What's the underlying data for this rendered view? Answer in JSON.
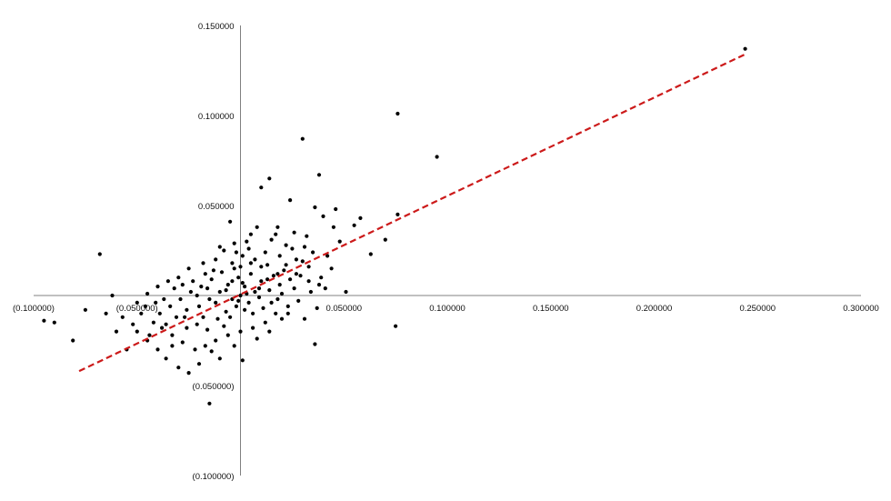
{
  "chart_data": {
    "type": "scatter",
    "title": "",
    "xlabel": "",
    "ylabel": "",
    "xlim": [
      -0.1,
      0.3
    ],
    "ylim": [
      -0.1,
      0.15
    ],
    "x_ticks": [
      {
        "value": -0.1,
        "label": "(0.100000)"
      },
      {
        "value": -0.05,
        "label": "(0.050000)"
      },
      {
        "value": 0.05,
        "label": "0.050000"
      },
      {
        "value": 0.1,
        "label": "0.100000"
      },
      {
        "value": 0.15,
        "label": "0.150000"
      },
      {
        "value": 0.2,
        "label": "0.200000"
      },
      {
        "value": 0.25,
        "label": "0.250000"
      },
      {
        "value": 0.3,
        "label": "0.300000"
      }
    ],
    "y_ticks": [
      {
        "value": 0.15,
        "label": "0.150000"
      },
      {
        "value": 0.1,
        "label": "0.100000"
      },
      {
        "value": 0.05,
        "label": "0.050000"
      },
      {
        "value": -0.05,
        "label": "(0.050000)"
      },
      {
        "value": -0.1,
        "label": "(0.100000)"
      }
    ],
    "grid": false,
    "series": [
      {
        "name": "observations",
        "color": "#000000",
        "points": [
          [
            0.244,
            0.137
          ],
          [
            0.076,
            0.101
          ],
          [
            0.095,
            0.077
          ],
          [
            0.03,
            0.087
          ],
          [
            0.014,
            0.065
          ],
          [
            0.038,
            0.067
          ],
          [
            0.01,
            0.06
          ],
          [
            0.024,
            0.053
          ],
          [
            0.036,
            0.049
          ],
          [
            0.046,
            0.048
          ],
          [
            0.04,
            0.044
          ],
          [
            0.058,
            0.043
          ],
          [
            0.076,
            0.045
          ],
          [
            0.07,
            0.031
          ],
          [
            0.063,
            0.023
          ],
          [
            0.051,
            0.002
          ],
          [
            0.075,
            -0.017
          ],
          [
            0.036,
            -0.027
          ],
          [
            -0.09,
            -0.015
          ],
          [
            -0.081,
            -0.025
          ],
          [
            -0.075,
            -0.008
          ],
          [
            -0.068,
            0.023
          ],
          [
            -0.062,
            0.0
          ],
          [
            -0.057,
            -0.012
          ],
          [
            -0.05,
            -0.02
          ],
          [
            -0.045,
            -0.025
          ],
          [
            -0.04,
            -0.03
          ],
          [
            -0.036,
            -0.035
          ],
          [
            -0.03,
            -0.04
          ],
          [
            -0.025,
            -0.043
          ],
          [
            -0.02,
            -0.038
          ],
          [
            -0.015,
            -0.06
          ],
          [
            -0.01,
            -0.035
          ],
          [
            0.001,
            -0.036
          ],
          [
            0.02,
            -0.013
          ],
          [
            0.031,
            -0.013
          ],
          [
            -0.095,
            -0.014
          ],
          [
            -0.055,
            -0.03
          ],
          [
            -0.038,
            -0.018
          ],
          [
            0.008,
            0.038
          ],
          [
            -0.005,
            0.041
          ],
          [
            0.018,
            0.038
          ],
          [
            0.026,
            0.035
          ],
          [
            0.032,
            0.033
          ],
          [
            0.045,
            0.038
          ],
          [
            0.055,
            0.039
          ],
          [
            0.048,
            0.03
          ],
          [
            0.042,
            0.022
          ],
          [
            0.033,
            0.016
          ],
          [
            0.039,
            0.01
          ],
          [
            0.044,
            0.015
          ],
          [
            0.025,
            0.026
          ],
          [
            0.019,
            0.022
          ],
          [
            0.022,
            0.028
          ],
          [
            0.015,
            0.031
          ],
          [
            0.003,
            0.03
          ],
          [
            -0.003,
            0.029
          ],
          [
            -0.008,
            0.025
          ],
          [
            -0.012,
            0.02
          ],
          [
            -0.018,
            0.018
          ],
          [
            -0.025,
            0.015
          ],
          [
            -0.03,
            0.01
          ],
          [
            -0.035,
            0.008
          ],
          [
            -0.04,
            0.005
          ],
          [
            -0.045,
            0.001
          ],
          [
            -0.05,
            -0.004
          ],
          [
            -0.048,
            -0.01
          ],
          [
            -0.052,
            -0.016
          ],
          [
            -0.042,
            -0.015
          ],
          [
            -0.033,
            -0.022
          ],
          [
            -0.028,
            -0.026
          ],
          [
            -0.022,
            -0.03
          ],
          [
            -0.017,
            -0.028
          ],
          [
            -0.012,
            -0.025
          ],
          [
            -0.006,
            -0.022
          ],
          [
            0.0,
            -0.02
          ],
          [
            0.006,
            -0.018
          ],
          [
            0.012,
            -0.015
          ],
          [
            0.017,
            -0.01
          ],
          [
            0.023,
            -0.006
          ],
          [
            0.028,
            -0.003
          ],
          [
            0.034,
            0.002
          ],
          [
            0.038,
            0.006
          ],
          [
            0.029,
            0.011
          ],
          [
            0.021,
            0.014
          ],
          [
            0.013,
            0.017
          ],
          [
            0.007,
            0.02
          ],
          [
            0.001,
            0.022
          ],
          [
            -0.004,
            0.018
          ],
          [
            -0.009,
            0.013
          ],
          [
            -0.014,
            0.009
          ],
          [
            -0.019,
            0.005
          ],
          [
            -0.024,
            0.002
          ],
          [
            -0.029,
            -0.002
          ],
          [
            -0.034,
            -0.006
          ],
          [
            -0.039,
            -0.01
          ],
          [
            -0.027,
            -0.012
          ],
          [
            -0.021,
            -0.016
          ],
          [
            -0.016,
            -0.019
          ],
          [
            -0.011,
            -0.013
          ],
          [
            -0.007,
            -0.009
          ],
          [
            -0.002,
            -0.006
          ],
          [
            0.004,
            -0.004
          ],
          [
            0.009,
            -0.001
          ],
          [
            0.014,
            0.003
          ],
          [
            0.019,
            0.006
          ],
          [
            0.024,
            0.009
          ],
          [
            0.016,
            0.011
          ],
          [
            0.01,
            0.008
          ],
          [
            0.005,
            0.012
          ],
          [
            -0.001,
            0.01
          ],
          [
            -0.006,
            0.006
          ],
          [
            -0.01,
            0.002
          ],
          [
            -0.015,
            -0.002
          ],
          [
            -0.02,
            -0.006
          ],
          [
            -0.026,
            -0.008
          ],
          [
            -0.031,
            -0.012
          ],
          [
            -0.036,
            -0.016
          ],
          [
            -0.032,
            0.004
          ],
          [
            -0.023,
            0.008
          ],
          [
            -0.013,
            0.014
          ],
          [
            -0.003,
            0.015
          ],
          [
            0.002,
            0.005
          ],
          [
            0.007,
            0.002
          ],
          [
            0.011,
            -0.007
          ],
          [
            0.015,
            -0.004
          ],
          [
            0.02,
            0.001
          ],
          [
            0.026,
            0.004
          ],
          [
            0.03,
            0.019
          ],
          [
            0.035,
            0.024
          ],
          [
            0.027,
            0.02
          ],
          [
            0.012,
            0.024
          ],
          [
            0.004,
            0.026
          ],
          [
            -0.002,
            0.024
          ],
          [
            -0.007,
            0.003
          ],
          [
            -0.004,
            -0.002
          ],
          [
            0.0,
            0.0
          ],
          [
            0.003,
            0.001
          ],
          [
            -0.001,
            -0.003
          ],
          [
            0.002,
            -0.008
          ],
          [
            -0.005,
            -0.012
          ],
          [
            0.006,
            -0.01
          ],
          [
            0.01,
            0.016
          ],
          [
            0.018,
            0.012
          ],
          [
            0.022,
            0.017
          ],
          [
            -0.017,
            0.012
          ],
          [
            -0.021,
            0.0
          ],
          [
            -0.008,
            -0.017
          ],
          [
            -0.014,
            -0.031
          ],
          [
            -0.003,
            -0.028
          ],
          [
            0.008,
            -0.024
          ],
          [
            -0.044,
            -0.022
          ],
          [
            -0.046,
            -0.006
          ],
          [
            -0.037,
            -0.002
          ],
          [
            -0.028,
            0.006
          ],
          [
            0.037,
            -0.007
          ],
          [
            0.041,
            0.004
          ],
          [
            0.014,
            -0.02
          ],
          [
            0.005,
            0.034
          ],
          [
            -0.01,
            0.027
          ],
          [
            0.031,
            0.027
          ],
          [
            0.017,
            0.034
          ],
          [
            -0.026,
            -0.018
          ],
          [
            -0.06,
            -0.02
          ],
          [
            -0.065,
            -0.01
          ],
          [
            0.0,
            0.016
          ],
          [
            0.005,
            0.018
          ],
          [
            -0.004,
            0.008
          ],
          [
            0.001,
            0.007
          ],
          [
            0.009,
            0.004
          ],
          [
            0.013,
            0.009
          ],
          [
            0.018,
            -0.002
          ],
          [
            -0.012,
            -0.004
          ],
          [
            -0.016,
            0.004
          ],
          [
            -0.018,
            -0.012
          ],
          [
            0.023,
            -0.01
          ],
          [
            0.027,
            0.012
          ],
          [
            0.033,
            0.008
          ],
          [
            -0.033,
            -0.028
          ],
          [
            -0.041,
            -0.004
          ]
        ]
      }
    ],
    "trendline": {
      "name": "linear trend",
      "color": "#cc1a1a",
      "style": "dashed",
      "x": [
        -0.078,
        0.244
      ],
      "y": [
        -0.042,
        0.134
      ]
    }
  }
}
